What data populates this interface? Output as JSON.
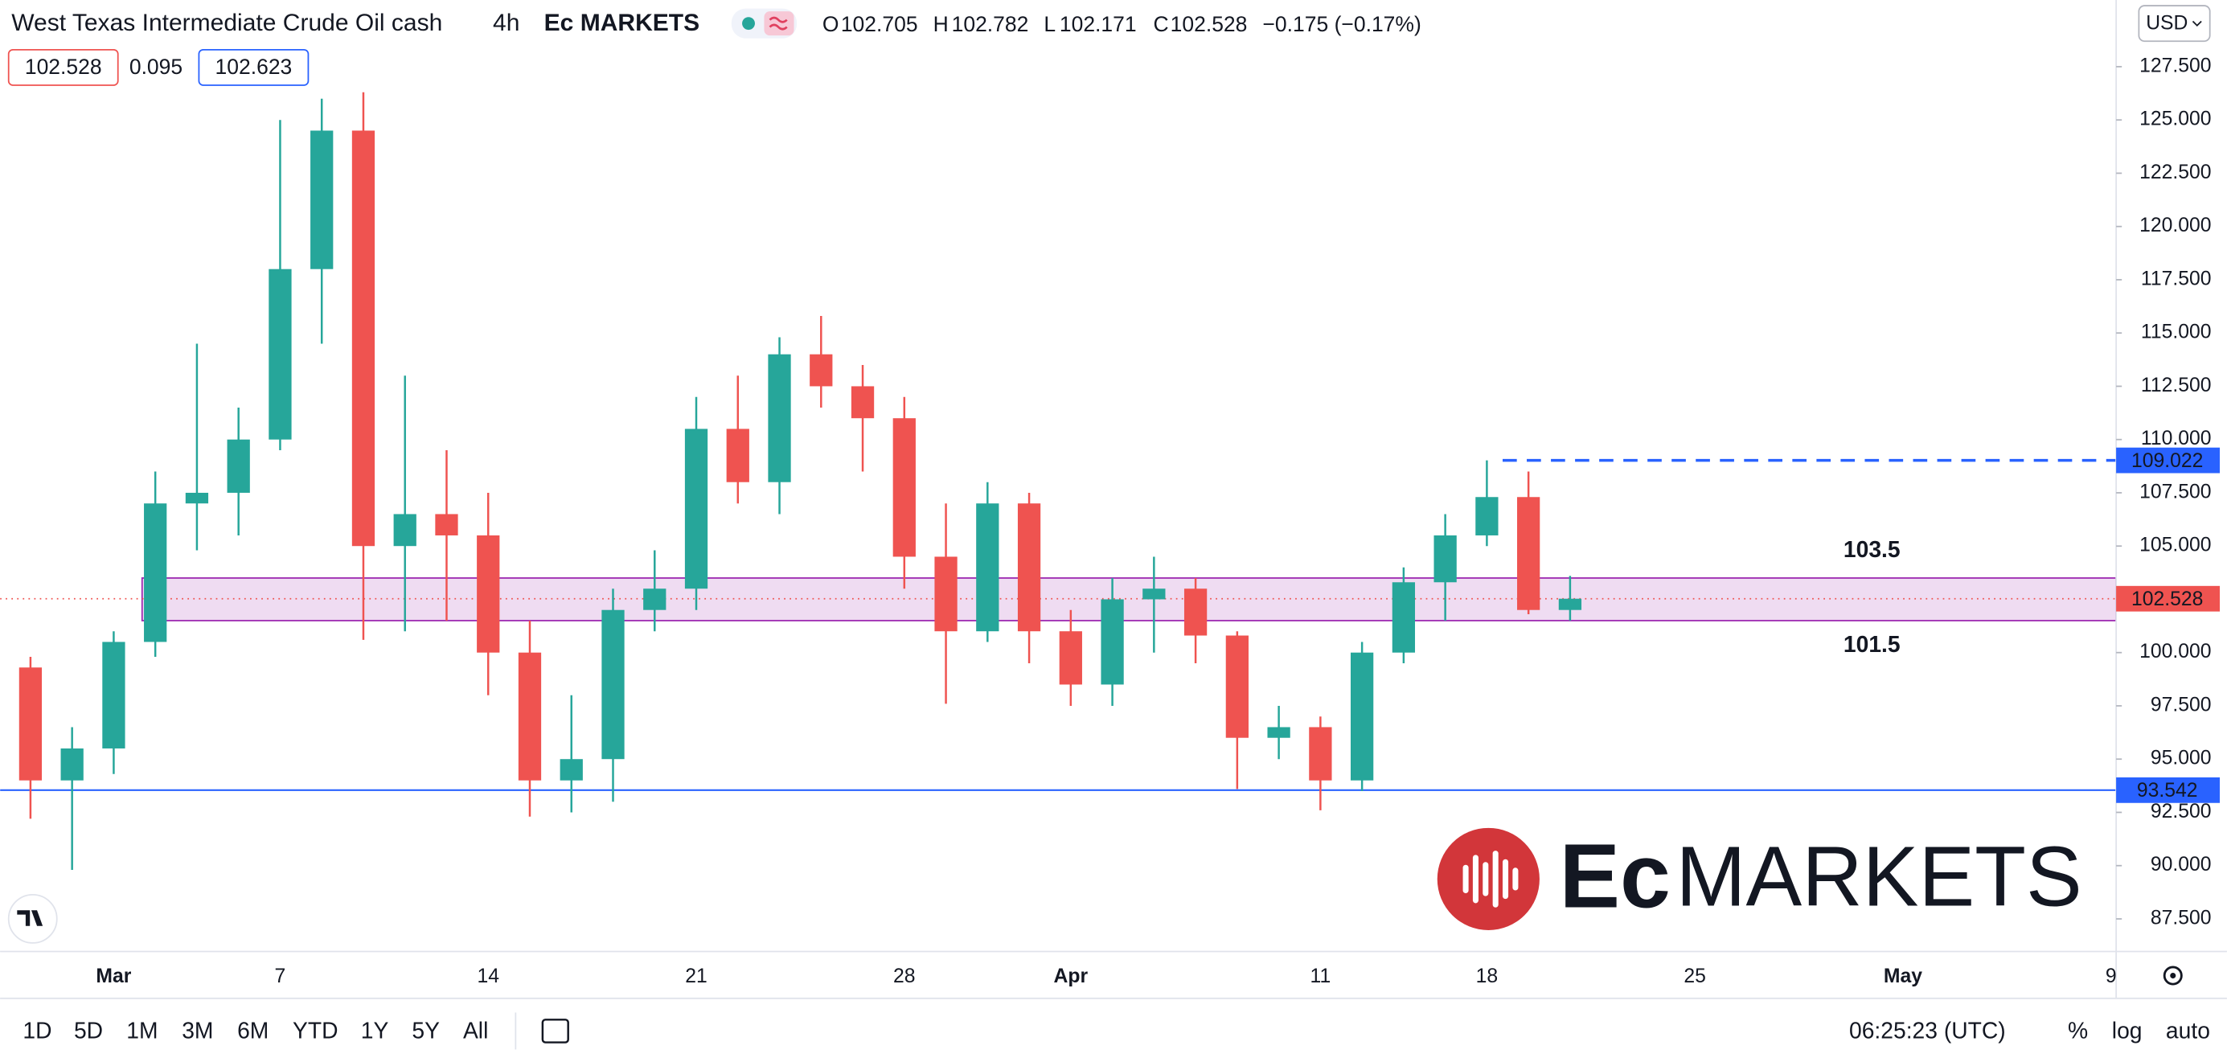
{
  "chart_data": {
    "type": "candlestick",
    "title": "West Texas Intermediate Crude Oil cash",
    "interval": "4h",
    "source": "Ec MARKETS",
    "categories": [
      null,
      null,
      "Mar",
      null,
      null,
      null,
      "7",
      null,
      null,
      null,
      null,
      "14",
      null,
      null,
      null,
      null,
      "21",
      null,
      null,
      null,
      null,
      "28",
      null,
      null,
      null,
      "Apr",
      null,
      null,
      null,
      null,
      null,
      "11",
      null,
      null,
      null,
      "18",
      null,
      null,
      null,
      null,
      "25",
      null,
      null,
      null,
      null,
      "May",
      null,
      null,
      null,
      null,
      "9"
    ],
    "open": [
      99.3,
      94,
      95.5,
      100.5,
      107,
      107.5,
      110,
      118,
      124.5,
      105,
      106.5,
      105.5,
      100,
      94,
      95,
      102,
      103,
      110.5,
      108,
      114,
      112.5,
      111,
      104.5,
      101,
      107,
      101,
      98.5,
      102.5,
      103,
      100.8,
      96,
      96.5,
      94,
      100,
      103.3,
      105.5,
      107.3,
      102,
      null,
      null,
      null,
      null,
      null,
      null,
      null,
      null,
      null,
      null,
      null,
      null,
      null
    ],
    "high": [
      99.8,
      96.5,
      101,
      108.5,
      114.5,
      111.5,
      125,
      126,
      126.3,
      113,
      109.5,
      107.5,
      101.5,
      98,
      103,
      104.8,
      112,
      113,
      114.8,
      115.8,
      113.5,
      112,
      107,
      108,
      107.5,
      102,
      103.5,
      104.5,
      103.5,
      101,
      97.5,
      97,
      100.5,
      104,
      106.5,
      109.02,
      108.5,
      103.6,
      null,
      null,
      null,
      null,
      null,
      null,
      null,
      null,
      null,
      null,
      null,
      null,
      null
    ],
    "low": [
      92.2,
      89.8,
      94.3,
      99.8,
      104.8,
      105.5,
      109.5,
      114.5,
      100.6,
      101,
      101.5,
      98,
      92.3,
      92.5,
      93,
      101,
      102,
      107,
      106.5,
      111.5,
      108.5,
      103,
      97.6,
      100.5,
      99.5,
      97.5,
      97.5,
      100,
      99.5,
      93.6,
      95,
      92.6,
      93.5,
      99.5,
      101.5,
      105,
      101.8,
      101.5,
      null,
      null,
      null,
      null,
      null,
      null,
      null,
      null,
      null,
      null,
      null,
      null,
      null
    ],
    "close": [
      94,
      95.5,
      100.5,
      107,
      107.5,
      110,
      118,
      124.5,
      105,
      106.5,
      105.5,
      100,
      94,
      95,
      102,
      103,
      110.5,
      108,
      114,
      112.5,
      111,
      104.5,
      101,
      107,
      101,
      98.5,
      102.5,
      103,
      100.8,
      96,
      96.5,
      94,
      100,
      103.3,
      105.5,
      107.3,
      102,
      102.528,
      null,
      null,
      null,
      null,
      null,
      null,
      null,
      null,
      null,
      null,
      null,
      null,
      null
    ],
    "up_color": "#26a69a",
    "down_color": "#ef5350",
    "ylim": [
      85.97,
      130.63
    ],
    "yticks": [
      {
        "value": 87.5,
        "label": "87.500"
      },
      {
        "value": 90,
        "label": "90.000"
      },
      {
        "value": 92.5,
        "label": "92.500"
      },
      {
        "value": 95,
        "label": "95.000"
      },
      {
        "value": 97.5,
        "label": "97.500"
      },
      {
        "value": 100,
        "label": "100.000"
      },
      {
        "value": 102.5,
        "label": "102.500"
      },
      {
        "value": 105,
        "label": "105.000"
      },
      {
        "value": 107.5,
        "label": "107.500"
      },
      {
        "value": 110,
        "label": "110.000"
      },
      {
        "value": 112.5,
        "label": "112.500"
      },
      {
        "value": 115,
        "label": "115.000"
      },
      {
        "value": 117.5,
        "label": "117.500"
      },
      {
        "value": 120,
        "label": "120.000"
      },
      {
        "value": 122.5,
        "label": "122.500"
      },
      {
        "value": 125,
        "label": "125.000"
      },
      {
        "value": 127.5,
        "label": "127.500"
      }
    ],
    "zone": {
      "top": 103.5,
      "bottom": 101.5,
      "color": "#9c27b0",
      "label_color": "#e0404f"
    },
    "resistance": {
      "value": 109.022,
      "color": "#2962ff"
    },
    "support": {
      "value": 93.542,
      "color": "#2962ff"
    },
    "last_price": {
      "value": 102.528,
      "color": "#ef5350"
    },
    "legend": {
      "open": 102.705,
      "high": 102.782,
      "low": 102.171,
      "close": 102.528,
      "change": "−0.175 (−0.17%)",
      "labels": [
        "O",
        "H",
        "L",
        "C"
      ]
    },
    "bid": 102.528,
    "spread": 0.095,
    "ask": 102.623,
    "currency": "USD"
  },
  "toolbar": {
    "ranges": [
      "1D",
      "5D",
      "1M",
      "3M",
      "6M",
      "YTD",
      "1Y",
      "5Y",
      "All"
    ],
    "clock": "06:25:23 (UTC)",
    "options": [
      "%",
      "log",
      "auto"
    ]
  },
  "watermark": {
    "brand": "Ec",
    "name": "MARKETS"
  }
}
